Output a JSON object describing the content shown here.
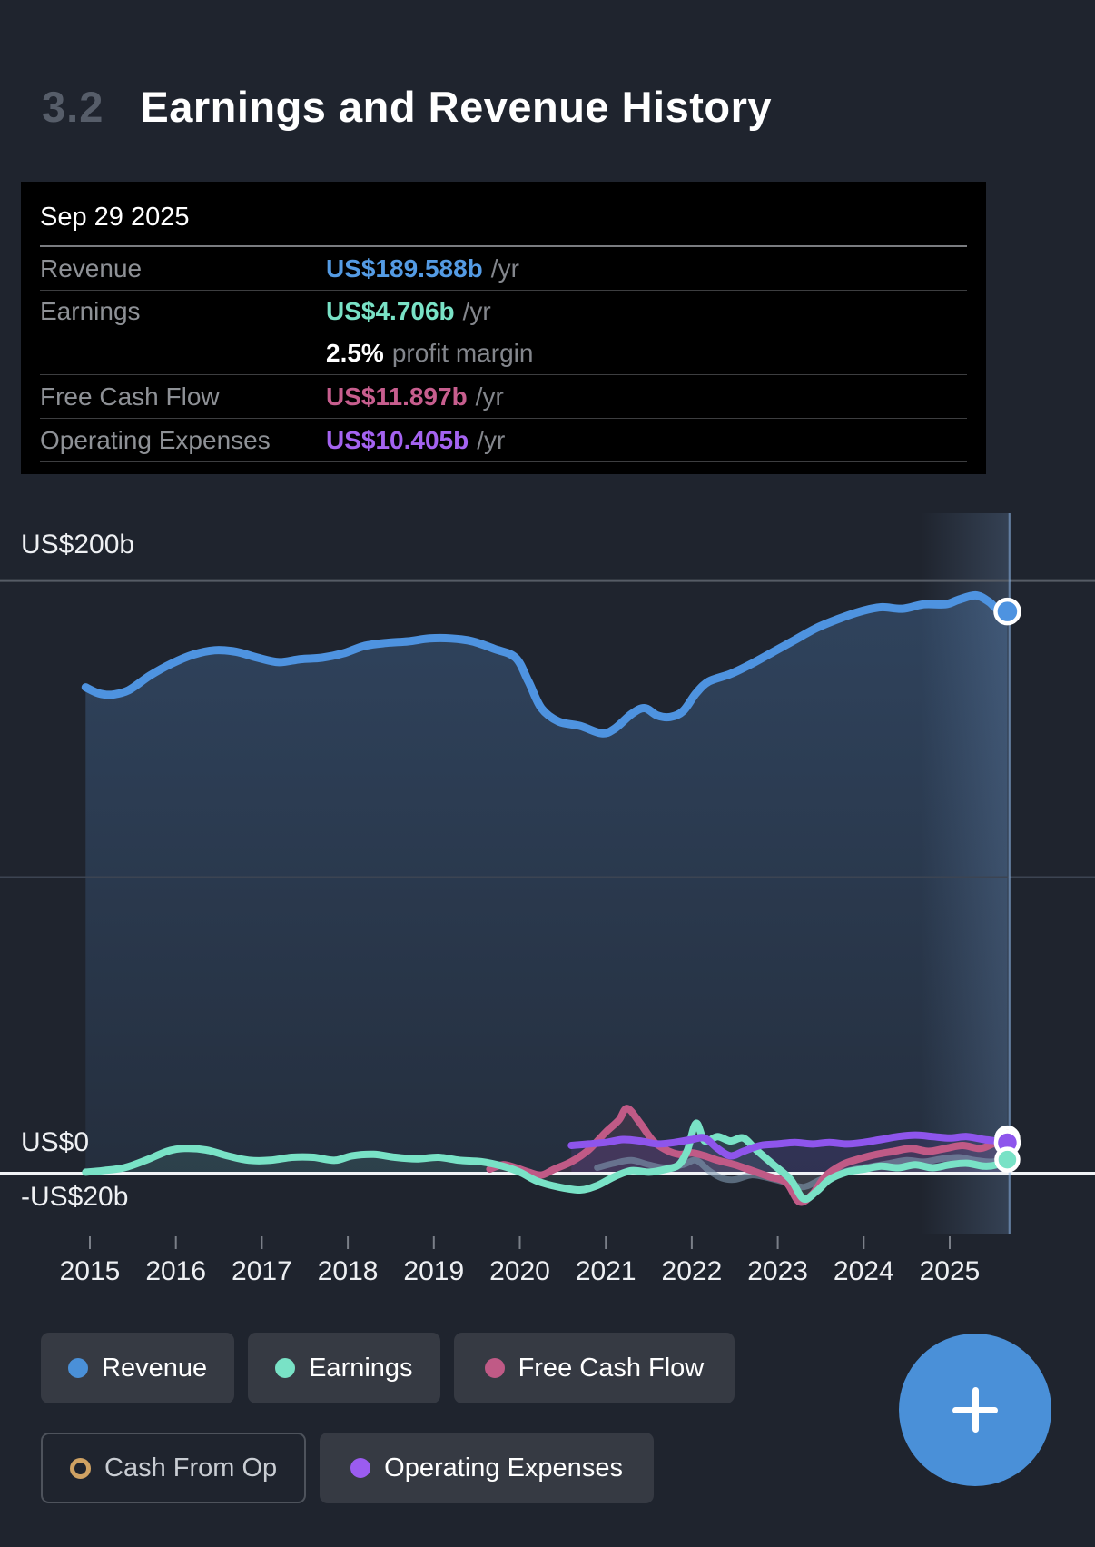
{
  "page": {
    "bg": "#1f242e"
  },
  "header": {
    "section_number": "3.2",
    "title": "Earnings and Revenue History"
  },
  "tooltip": {
    "date": "Sep 29 2025",
    "rows": [
      {
        "label": "Revenue",
        "value": "US$189.588b",
        "suffix": "/yr",
        "color": "#549be4"
      },
      {
        "label": "Earnings",
        "value": "US$4.706b",
        "suffix": "/yr",
        "color": "#79e2c6"
      },
      {
        "label": "",
        "value": "2.5%",
        "suffix": "profit margin",
        "color": "#ffffff"
      },
      {
        "label": "Free Cash Flow",
        "value": "US$11.897b",
        "suffix": "/yr",
        "color": "#c75e8e"
      },
      {
        "label": "Operating Expenses",
        "value": "US$10.405b",
        "suffix": "/yr",
        "color": "#a463f0"
      }
    ]
  },
  "axis": {
    "y_top_label": "US$200b",
    "y_zero_label": "US$0",
    "y_bottom_label": "-US$20b",
    "x_labels": [
      "2015",
      "2016",
      "2017",
      "2018",
      "2019",
      "2020",
      "2021",
      "2022",
      "2023",
      "2024",
      "2025"
    ]
  },
  "legend": {
    "items": [
      {
        "label": "Revenue",
        "color": "#4a90d8",
        "active": true
      },
      {
        "label": "Earnings",
        "color": "#79e2c6",
        "active": true
      },
      {
        "label": "Free Cash Flow",
        "color": "#c05a86",
        "active": true
      },
      {
        "label": "Cash From Op",
        "color": "#cfa263",
        "active": false
      },
      {
        "label": "Operating Expenses",
        "color": "#9b5cf0",
        "active": true
      }
    ]
  },
  "fab": {
    "label": "+",
    "color": "#4a90d8"
  },
  "chart_data": {
    "type": "line",
    "title": "Earnings and Revenue History",
    "x_unit": "year",
    "x_tick_labels": [
      "2015",
      "2016",
      "2017",
      "2018",
      "2019",
      "2020",
      "2021",
      "2022",
      "2023",
      "2024",
      "2025"
    ],
    "y_gridlines_b": [
      0,
      100,
      200
    ],
    "y_tick_labels": [
      "US$200b",
      "US$0",
      "-US$20b"
    ],
    "selected_date": "Sep 29 2025",
    "selected_x": 2025.67,
    "legend_position": "bottom",
    "series": [
      {
        "name": "Revenue",
        "color": "#4e93e0",
        "unit": "US$b",
        "end_value_b": 189.588,
        "marker": true,
        "points": [
          [
            2014.95,
            164
          ],
          [
            2015.1,
            162
          ],
          [
            2015.25,
            161.5
          ],
          [
            2015.45,
            163
          ],
          [
            2015.7,
            168
          ],
          [
            2015.95,
            172
          ],
          [
            2016.2,
            175
          ],
          [
            2016.45,
            176.5
          ],
          [
            2016.7,
            176
          ],
          [
            2016.95,
            174
          ],
          [
            2017.2,
            172.5
          ],
          [
            2017.45,
            173.5
          ],
          [
            2017.7,
            174
          ],
          [
            2017.95,
            175.5
          ],
          [
            2018.2,
            178
          ],
          [
            2018.45,
            179
          ],
          [
            2018.7,
            179.5
          ],
          [
            2018.95,
            180.5
          ],
          [
            2019.2,
            180.5
          ],
          [
            2019.45,
            179.5
          ],
          [
            2019.7,
            177
          ],
          [
            2019.95,
            174
          ],
          [
            2020.1,
            166
          ],
          [
            2020.25,
            157
          ],
          [
            2020.45,
            152.5
          ],
          [
            2020.7,
            151
          ],
          [
            2020.95,
            148.5
          ],
          [
            2021.1,
            150
          ],
          [
            2021.3,
            155
          ],
          [
            2021.45,
            157
          ],
          [
            2021.6,
            154.5
          ],
          [
            2021.75,
            154
          ],
          [
            2021.9,
            156
          ],
          [
            2022.05,
            162
          ],
          [
            2022.2,
            166
          ],
          [
            2022.45,
            168.5
          ],
          [
            2022.7,
            172
          ],
          [
            2022.95,
            176
          ],
          [
            2023.2,
            180
          ],
          [
            2023.45,
            184
          ],
          [
            2023.7,
            187
          ],
          [
            2023.95,
            189.5
          ],
          [
            2024.2,
            191
          ],
          [
            2024.45,
            190.5
          ],
          [
            2024.7,
            192
          ],
          [
            2024.95,
            192
          ],
          [
            2025.1,
            193.5
          ],
          [
            2025.3,
            195
          ],
          [
            2025.45,
            193
          ],
          [
            2025.55,
            190.5
          ],
          [
            2025.67,
            189.588
          ]
        ]
      },
      {
        "name": "Cash From Op",
        "color": "#8099b0",
        "unit": "US$b",
        "muted": true,
        "marker": false,
        "points": [
          [
            2020.9,
            2
          ],
          [
            2021.1,
            3.5
          ],
          [
            2021.3,
            4.5
          ],
          [
            2021.5,
            3
          ],
          [
            2021.7,
            2
          ],
          [
            2021.9,
            3
          ],
          [
            2022.05,
            4.5
          ],
          [
            2022.2,
            1
          ],
          [
            2022.35,
            -1.5
          ],
          [
            2022.5,
            -2
          ],
          [
            2022.7,
            -0.5
          ],
          [
            2022.9,
            -1.5
          ],
          [
            2023.1,
            -3
          ],
          [
            2023.3,
            -4.5
          ],
          [
            2023.5,
            -2
          ],
          [
            2023.7,
            0
          ],
          [
            2023.9,
            1.5
          ],
          [
            2024.1,
            2.5
          ],
          [
            2024.3,
            3.5
          ],
          [
            2024.5,
            4.5
          ],
          [
            2024.7,
            4
          ],
          [
            2024.9,
            5
          ],
          [
            2025.1,
            5.5
          ],
          [
            2025.3,
            4.5
          ],
          [
            2025.5,
            4
          ],
          [
            2025.67,
            5.5
          ]
        ]
      },
      {
        "name": "Free Cash Flow",
        "color": "#c05a86",
        "unit": "US$b",
        "end_value_b": 11.897,
        "marker": true,
        "points": [
          [
            2019.65,
            1.5
          ],
          [
            2019.8,
            3
          ],
          [
            2019.95,
            2
          ],
          [
            2020.1,
            0.5
          ],
          [
            2020.25,
            -0.5
          ],
          [
            2020.4,
            1.5
          ],
          [
            2020.6,
            4
          ],
          [
            2020.8,
            8
          ],
          [
            2021.0,
            14
          ],
          [
            2021.15,
            18
          ],
          [
            2021.25,
            22
          ],
          [
            2021.4,
            17
          ],
          [
            2021.55,
            11
          ],
          [
            2021.7,
            8
          ],
          [
            2021.85,
            6.5
          ],
          [
            2022.0,
            7
          ],
          [
            2022.15,
            6
          ],
          [
            2022.3,
            4.5
          ],
          [
            2022.5,
            3
          ],
          [
            2022.7,
            1
          ],
          [
            2022.9,
            -1
          ],
          [
            2023.1,
            -3
          ],
          [
            2023.25,
            -9.5
          ],
          [
            2023.4,
            -7
          ],
          [
            2023.55,
            -1
          ],
          [
            2023.75,
            3
          ],
          [
            2023.95,
            5
          ],
          [
            2024.15,
            6.5
          ],
          [
            2024.35,
            7.5
          ],
          [
            2024.55,
            8.5
          ],
          [
            2024.75,
            7.5
          ],
          [
            2024.95,
            8.5
          ],
          [
            2025.15,
            9.5
          ],
          [
            2025.35,
            8.5
          ],
          [
            2025.5,
            10
          ],
          [
            2025.67,
            11.897
          ]
        ]
      },
      {
        "name": "Earnings",
        "color": "#79e2c6",
        "unit": "US$b",
        "end_value_b": 4.706,
        "marker": true,
        "points": [
          [
            2014.95,
            0.5
          ],
          [
            2015.15,
            1
          ],
          [
            2015.4,
            2
          ],
          [
            2015.65,
            4.5
          ],
          [
            2015.9,
            7.5
          ],
          [
            2016.1,
            8.5
          ],
          [
            2016.35,
            8
          ],
          [
            2016.6,
            6
          ],
          [
            2016.85,
            4.5
          ],
          [
            2017.1,
            4.5
          ],
          [
            2017.35,
            5.5
          ],
          [
            2017.6,
            5.5
          ],
          [
            2017.85,
            4.5
          ],
          [
            2018.05,
            6
          ],
          [
            2018.3,
            6.5
          ],
          [
            2018.55,
            5.5
          ],
          [
            2018.8,
            5
          ],
          [
            2019.05,
            5.5
          ],
          [
            2019.3,
            4.5
          ],
          [
            2019.55,
            4
          ],
          [
            2019.8,
            2.5
          ],
          [
            2020.0,
            0.5
          ],
          [
            2020.2,
            -2.5
          ],
          [
            2020.45,
            -4.5
          ],
          [
            2020.7,
            -5.5
          ],
          [
            2020.9,
            -4
          ],
          [
            2021.1,
            -1
          ],
          [
            2021.3,
            1
          ],
          [
            2021.5,
            0.5
          ],
          [
            2021.7,
            1.5
          ],
          [
            2021.85,
            3
          ],
          [
            2021.95,
            8
          ],
          [
            2022.05,
            17
          ],
          [
            2022.15,
            11
          ],
          [
            2022.3,
            12.5
          ],
          [
            2022.45,
            11
          ],
          [
            2022.6,
            12
          ],
          [
            2022.75,
            8
          ],
          [
            2022.95,
            3
          ],
          [
            2023.15,
            -2
          ],
          [
            2023.3,
            -8.5
          ],
          [
            2023.45,
            -6
          ],
          [
            2023.6,
            -2
          ],
          [
            2023.8,
            0.5
          ],
          [
            2024.0,
            1.5
          ],
          [
            2024.2,
            2.5
          ],
          [
            2024.4,
            2
          ],
          [
            2024.6,
            3
          ],
          [
            2024.8,
            2
          ],
          [
            2025.0,
            3
          ],
          [
            2025.2,
            3.5
          ],
          [
            2025.4,
            2.5
          ],
          [
            2025.55,
            3
          ],
          [
            2025.67,
            4.706
          ]
        ]
      },
      {
        "name": "Operating Expenses",
        "color": "#8e55ec",
        "unit": "US$b",
        "end_value_b": 10.405,
        "marker": true,
        "points": [
          [
            2020.6,
            9.5
          ],
          [
            2020.8,
            10
          ],
          [
            2021.0,
            10.5
          ],
          [
            2021.2,
            11.5
          ],
          [
            2021.4,
            11
          ],
          [
            2021.6,
            10
          ],
          [
            2021.8,
            10.5
          ],
          [
            2022.0,
            11.5
          ],
          [
            2022.15,
            12
          ],
          [
            2022.3,
            8.5
          ],
          [
            2022.45,
            6
          ],
          [
            2022.6,
            7.5
          ],
          [
            2022.8,
            9.5
          ],
          [
            2023.0,
            10
          ],
          [
            2023.2,
            10.5
          ],
          [
            2023.4,
            10
          ],
          [
            2023.6,
            10.5
          ],
          [
            2023.8,
            10
          ],
          [
            2024.0,
            10.5
          ],
          [
            2024.2,
            11.5
          ],
          [
            2024.4,
            12.5
          ],
          [
            2024.6,
            13
          ],
          [
            2024.8,
            12.5
          ],
          [
            2025.0,
            12
          ],
          [
            2025.2,
            12.5
          ],
          [
            2025.4,
            11.5
          ],
          [
            2025.55,
            11
          ],
          [
            2025.67,
            10.405
          ]
        ]
      }
    ]
  }
}
